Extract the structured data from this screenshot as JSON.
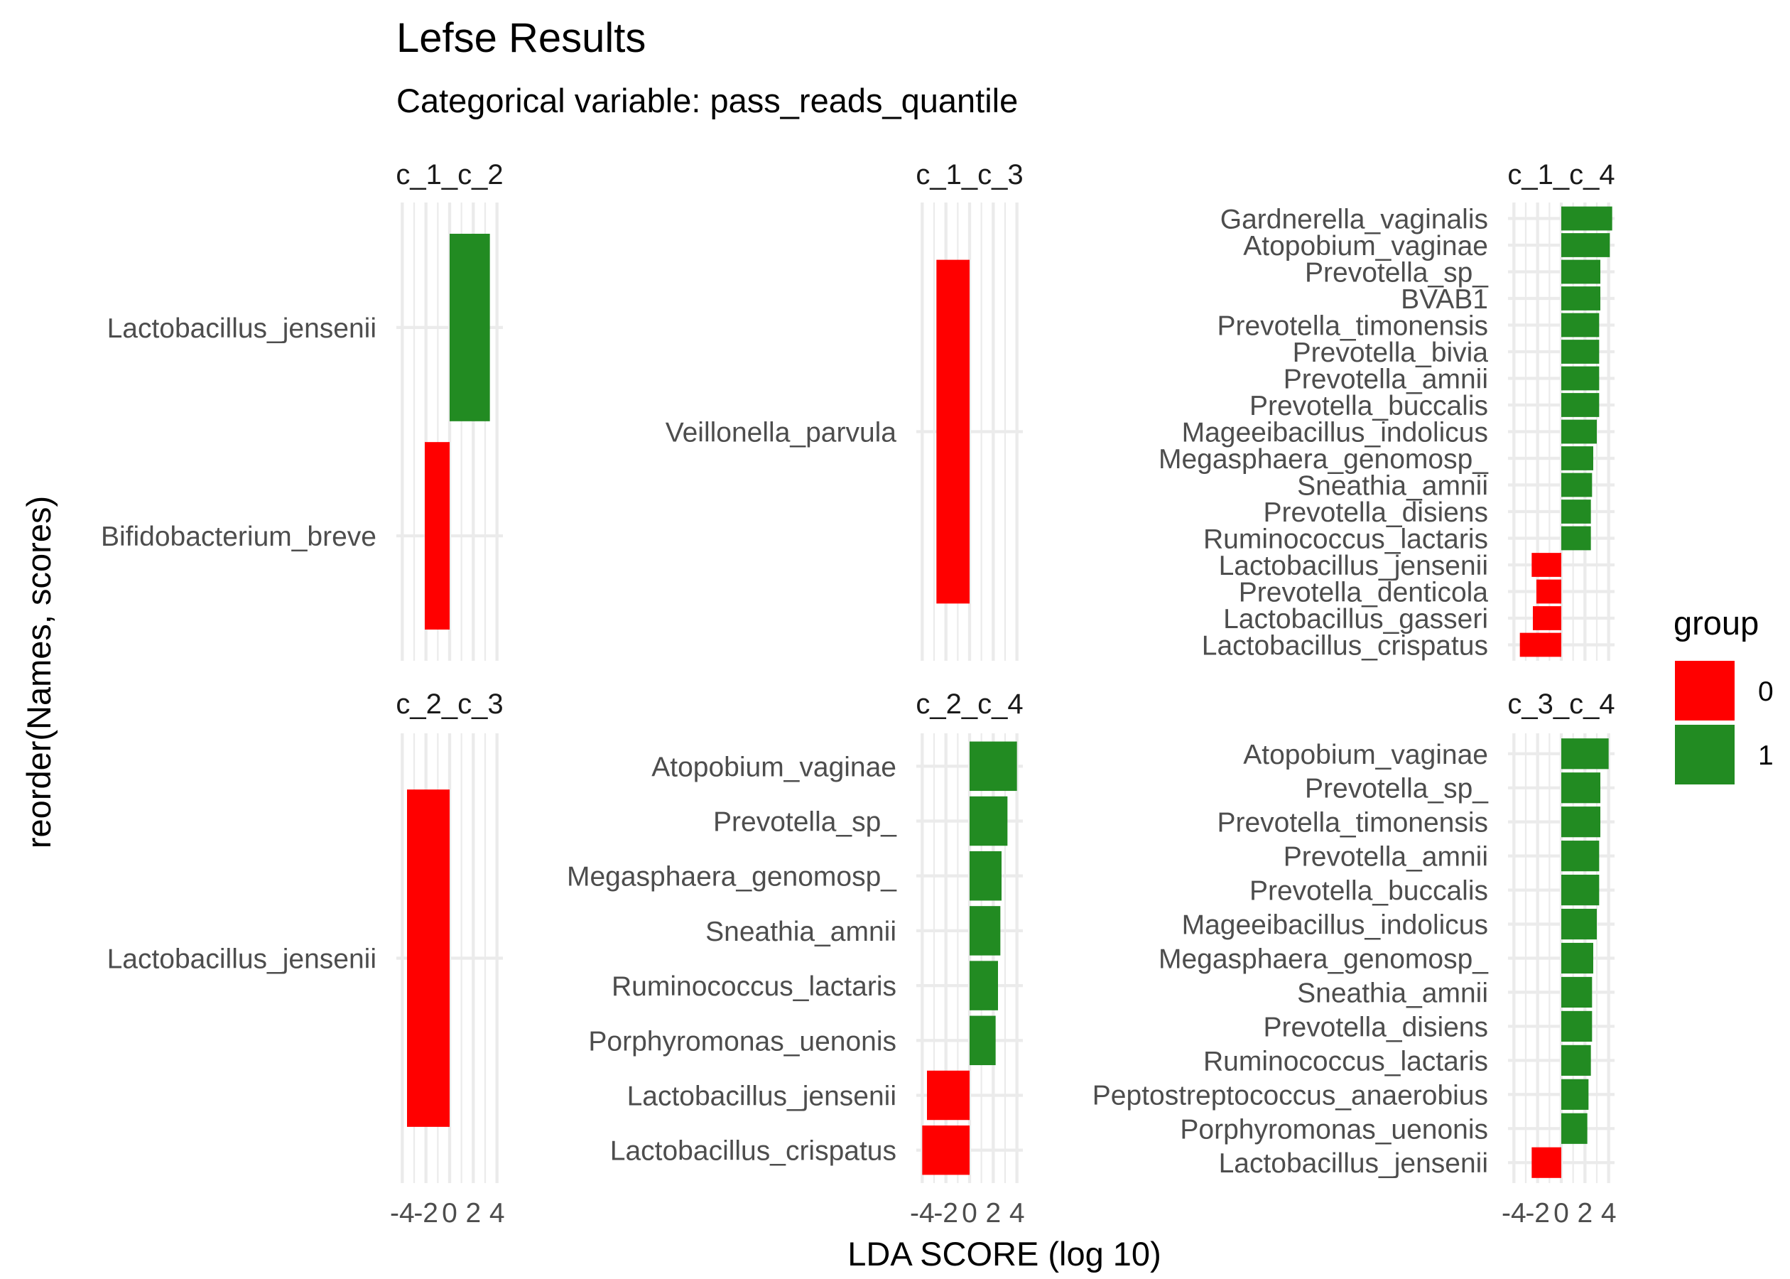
{
  "chart_data": {
    "type": "bar",
    "orientation": "horizontal",
    "title": "Lefse Results",
    "subtitle": "Categorical variable: pass_reads_quantile",
    "xlabel": "LDA SCORE (log 10)",
    "ylabel": "reorder(Names, scores)",
    "xlim": [
      -4.5,
      4.5
    ],
    "x_ticks": [
      "-4",
      "-2",
      "0",
      "2",
      "4"
    ],
    "grid": true,
    "legend": {
      "title": "group",
      "position": "right",
      "items": [
        {
          "label": "0",
          "color": "#ff0000"
        },
        {
          "label": "1",
          "color": "#228b22"
        }
      ]
    },
    "panels": [
      {
        "strip": "c_1_c_2",
        "bars": [
          {
            "name": "Lactobacillus_jensenii",
            "score": 3.4,
            "group": "1"
          },
          {
            "name": "Bifidobacterium_breve",
            "score": -2.1,
            "group": "0"
          }
        ]
      },
      {
        "strip": "c_1_c_3",
        "bars": [
          {
            "name": "Veillonella_parvula",
            "score": -2.8,
            "group": "0"
          }
        ]
      },
      {
        "strip": "c_1_c_4",
        "bars": [
          {
            "name": "Gardnerella_vaginalis",
            "score": 4.3,
            "group": "1"
          },
          {
            "name": "Atopobium_vaginae",
            "score": 4.1,
            "group": "1"
          },
          {
            "name": "Prevotella_sp_",
            "score": 3.3,
            "group": "1"
          },
          {
            "name": "BVAB1",
            "score": 3.3,
            "group": "1"
          },
          {
            "name": "Prevotella_timonensis",
            "score": 3.2,
            "group": "1"
          },
          {
            "name": "Prevotella_bivia",
            "score": 3.2,
            "group": "1"
          },
          {
            "name": "Prevotella_amnii",
            "score": 3.2,
            "group": "1"
          },
          {
            "name": "Prevotella_buccalis",
            "score": 3.2,
            "group": "1"
          },
          {
            "name": "Mageeibacillus_indolicus",
            "score": 3.0,
            "group": "1"
          },
          {
            "name": "Megasphaera_genomosp_",
            "score": 2.7,
            "group": "1"
          },
          {
            "name": "Sneathia_amnii",
            "score": 2.6,
            "group": "1"
          },
          {
            "name": "Prevotella_disiens",
            "score": 2.5,
            "group": "1"
          },
          {
            "name": "Ruminococcus_lactaris",
            "score": 2.5,
            "group": "1"
          },
          {
            "name": "Lactobacillus_jensenii",
            "score": -2.5,
            "group": "0"
          },
          {
            "name": "Prevotella_denticola",
            "score": -2.1,
            "group": "0"
          },
          {
            "name": "Lactobacillus_gasseri",
            "score": -2.4,
            "group": "0"
          },
          {
            "name": "Lactobacillus_crispatus",
            "score": -3.5,
            "group": "0"
          }
        ]
      },
      {
        "strip": "c_2_c_3",
        "bars": [
          {
            "name": "Lactobacillus_jensenii",
            "score": -3.6,
            "group": "0"
          }
        ]
      },
      {
        "strip": "c_2_c_4",
        "bars": [
          {
            "name": "Atopobium_vaginae",
            "score": 4.0,
            "group": "1"
          },
          {
            "name": "Prevotella_sp_",
            "score": 3.2,
            "group": "1"
          },
          {
            "name": "Megasphaera_genomosp_",
            "score": 2.7,
            "group": "1"
          },
          {
            "name": "Sneathia_amnii",
            "score": 2.6,
            "group": "1"
          },
          {
            "name": "Ruminococcus_lactaris",
            "score": 2.4,
            "group": "1"
          },
          {
            "name": "Porphyromonas_uenonis",
            "score": 2.2,
            "group": "1"
          },
          {
            "name": "Lactobacillus_jensenii",
            "score": -3.6,
            "group": "0"
          },
          {
            "name": "Lactobacillus_crispatus",
            "score": -4.0,
            "group": "0"
          }
        ]
      },
      {
        "strip": "c_3_c_4",
        "bars": [
          {
            "name": "Atopobium_vaginae",
            "score": 4.0,
            "group": "1"
          },
          {
            "name": "Prevotella_sp_",
            "score": 3.3,
            "group": "1"
          },
          {
            "name": "Prevotella_timonensis",
            "score": 3.3,
            "group": "1"
          },
          {
            "name": "Prevotella_amnii",
            "score": 3.2,
            "group": "1"
          },
          {
            "name": "Prevotella_buccalis",
            "score": 3.2,
            "group": "1"
          },
          {
            "name": "Mageeibacillus_indolicus",
            "score": 3.0,
            "group": "1"
          },
          {
            "name": "Megasphaera_genomosp_",
            "score": 2.7,
            "group": "1"
          },
          {
            "name": "Sneathia_amnii",
            "score": 2.6,
            "group": "1"
          },
          {
            "name": "Prevotella_disiens",
            "score": 2.6,
            "group": "1"
          },
          {
            "name": "Ruminococcus_lactaris",
            "score": 2.5,
            "group": "1"
          },
          {
            "name": "Peptostreptococcus_anaerobius",
            "score": 2.3,
            "group": "1"
          },
          {
            "name": "Porphyromonas_uenonis",
            "score": 2.2,
            "group": "1"
          },
          {
            "name": "Lactobacillus_jensenii",
            "score": -2.5,
            "group": "0"
          }
        ]
      }
    ]
  }
}
